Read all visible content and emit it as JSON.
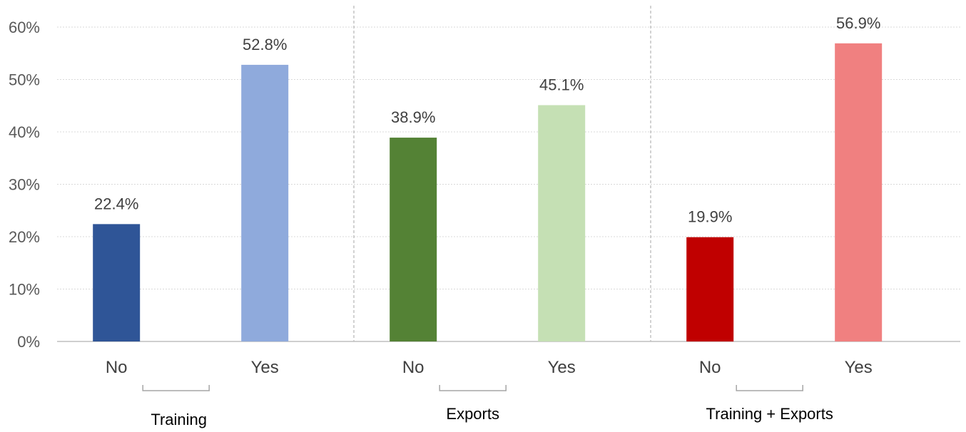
{
  "chart_data": {
    "type": "bar",
    "ylim": [
      0,
      60
    ],
    "y_ticks": [
      0,
      10,
      20,
      30,
      40,
      50,
      60
    ],
    "y_tick_labels": [
      "0%",
      "10%",
      "20%",
      "30%",
      "40%",
      "50%",
      "60%"
    ],
    "grid": true,
    "groups": [
      {
        "label": "Training",
        "bars": [
          {
            "category": "No",
            "value": 22.4,
            "label": "22.4%",
            "color": "#2f5597"
          },
          {
            "category": "Yes",
            "value": 52.8,
            "label": "52.8%",
            "color": "#8faadc"
          }
        ]
      },
      {
        "label": "Exports",
        "bars": [
          {
            "category": "No",
            "value": 38.9,
            "label": "38.9%",
            "color": "#548235"
          },
          {
            "category": "Yes",
            "value": 45.1,
            "label": "45.1%",
            "color": "#c5e0b4"
          }
        ]
      },
      {
        "label": "Training + Exports",
        "bars": [
          {
            "category": "No",
            "value": 19.9,
            "label": "19.9%",
            "color": "#c00000"
          },
          {
            "category": "Yes",
            "value": 56.9,
            "label": "56.9%",
            "color": "#f08080"
          }
        ]
      }
    ]
  }
}
